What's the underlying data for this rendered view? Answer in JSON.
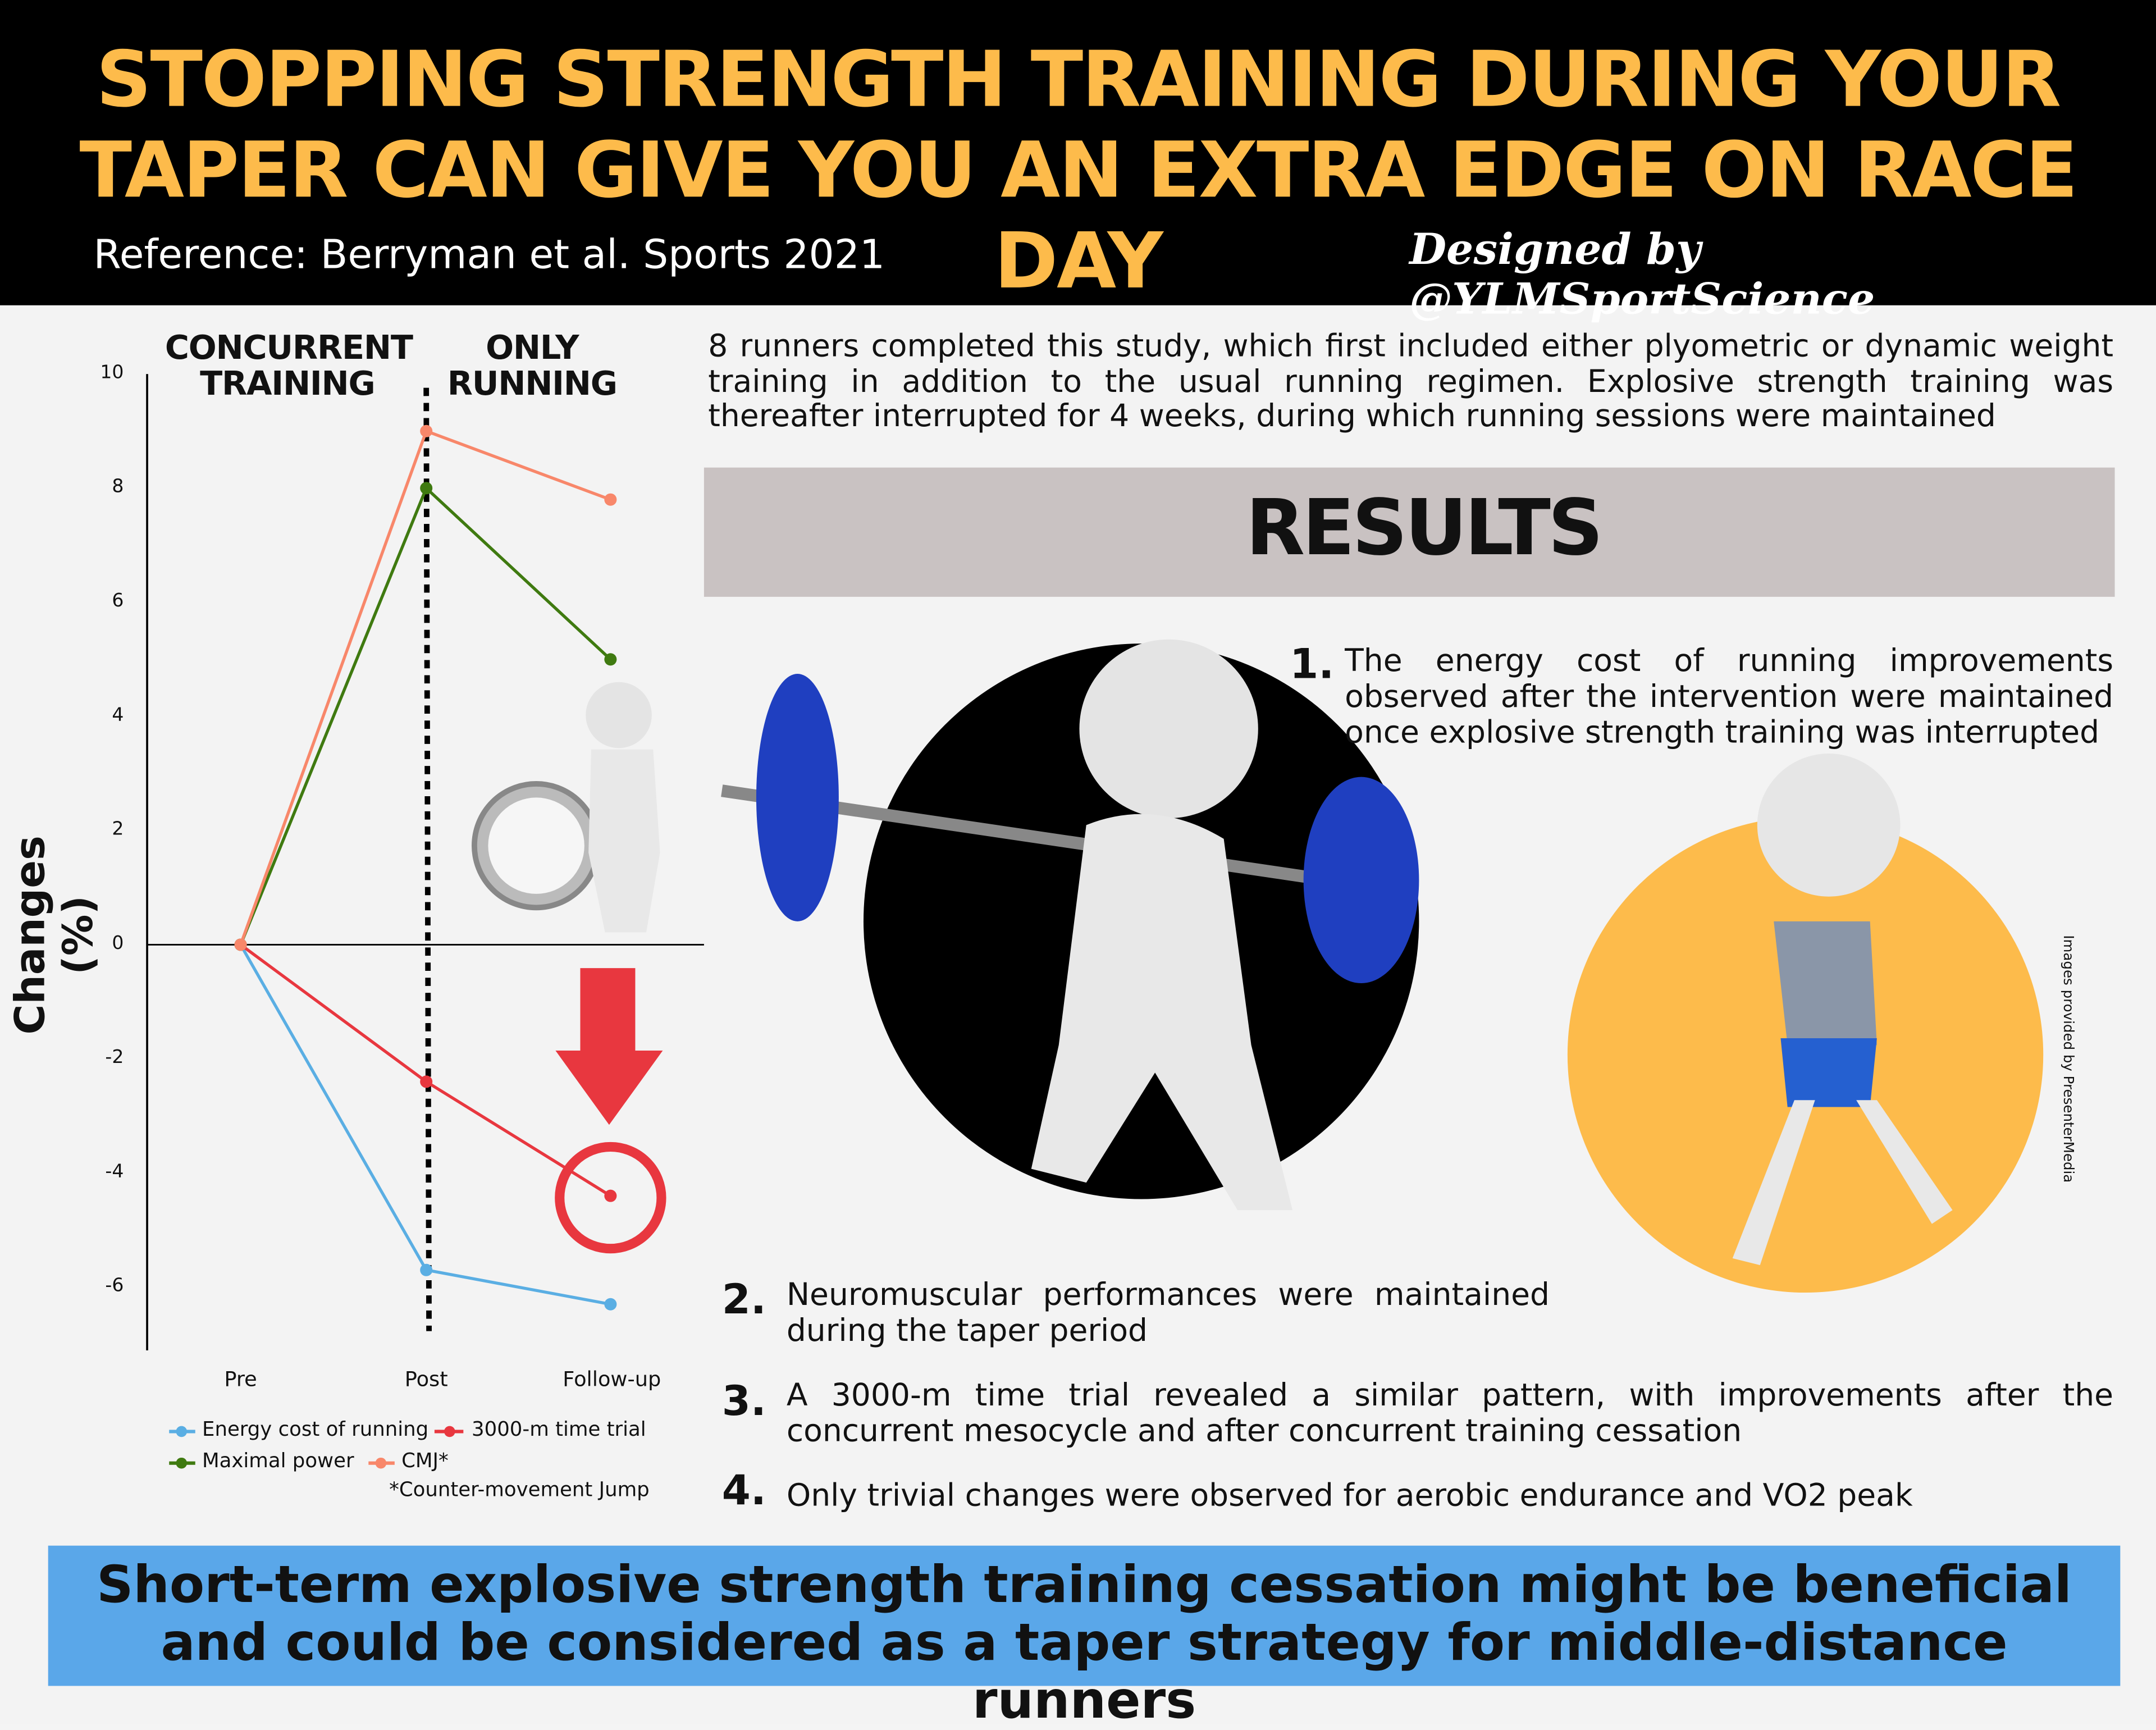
{
  "header": {
    "title_line1": "STOPPING STRENGTH TRAINING DURING YOUR",
    "title_line2": "TAPER CAN GIVE YOU AN EXTRA EDGE ON RACE DAY",
    "reference": "Reference: Berryman et al. Sports 2021",
    "designed_by": "Designed by @YLMSportScience"
  },
  "intro": "8 runners completed this study, which first included either plyometric or dynamic weight training in addition to the usual running regimen. Explosive strength training was thereafter interrupted for 4 weeks, during which running sessions were maintained",
  "results_label": "RESULTS",
  "findings": [
    {
      "num": "1.",
      "text": "The energy cost of running improvements observed after the intervention were maintained once explosive strength training was interrupted"
    },
    {
      "num": "2.",
      "text": "Neuromuscular performances were maintained during the taper period"
    },
    {
      "num": "3.",
      "text": "A 3000-m time trial revealed a similar pattern, with improvements after the concurrent mesocycle and after concurrent training cessation"
    },
    {
      "num": "4.",
      "text": "Only trivial changes were observed for aerobic endurance and VO2 peak"
    }
  ],
  "image_credit": "Images provided by PresenterMedia",
  "conclusion": "Short-term explosive strength training cessation might be beneficial and could be considered as a taper strategy for middle-distance runners",
  "colors": {
    "title": "#fdbb4b",
    "conclusion_bg": "#5aa7e9",
    "results_bg": "#c9c2c2",
    "orange_circle": "#fdbb4b",
    "arrow": "#e8373f"
  },
  "chart_data": {
    "type": "line",
    "ylabel": "Changes (%)",
    "ylim": [
      -7,
      10
    ],
    "yticks": [
      "10",
      "8",
      "6",
      "4",
      "2",
      "0",
      "-2",
      "-4",
      "-6"
    ],
    "categories": [
      "Pre",
      "Post",
      "Follow-up"
    ],
    "phase_labels": {
      "concurrent_l1": "CONCURRENT",
      "concurrent_l2": "TRAINING",
      "only_l1": "ONLY",
      "only_l2": "RUNNING"
    },
    "series": [
      {
        "name": "Energy cost of running",
        "color": "#5aaee3",
        "values": [
          0,
          -5.7,
          -6.3
        ]
      },
      {
        "name": "3000-m time trial",
        "color": "#e8373f",
        "values": [
          0,
          -2.4,
          -4.4
        ]
      },
      {
        "name": "Maximal power",
        "color": "#3f7a10",
        "values": [
          0,
          8,
          5
        ]
      },
      {
        "name": "CMJ*",
        "color": "#f8876a",
        "values": [
          0,
          9,
          7.8
        ]
      }
    ],
    "footnote": "*Counter-movement Jump",
    "legend": "bottom",
    "grid": false
  }
}
